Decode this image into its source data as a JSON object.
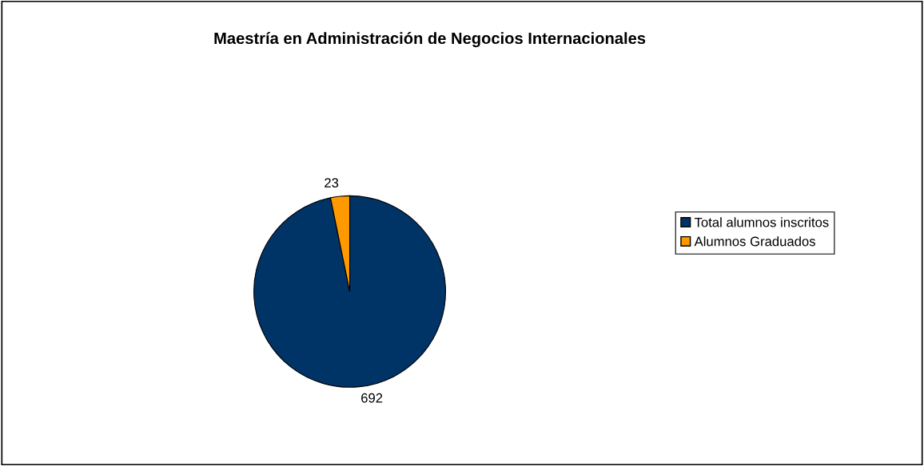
{
  "chart_data": {
    "type": "pie",
    "title": "Maestría en Administración de Negocios Internacionales",
    "categories": [
      "Total alumnos inscritos",
      "Alumnos Graduados"
    ],
    "values": [
      692,
      23
    ],
    "colors": [
      "#003366",
      "#ff9900"
    ],
    "data_labels": true,
    "legend": "right"
  }
}
